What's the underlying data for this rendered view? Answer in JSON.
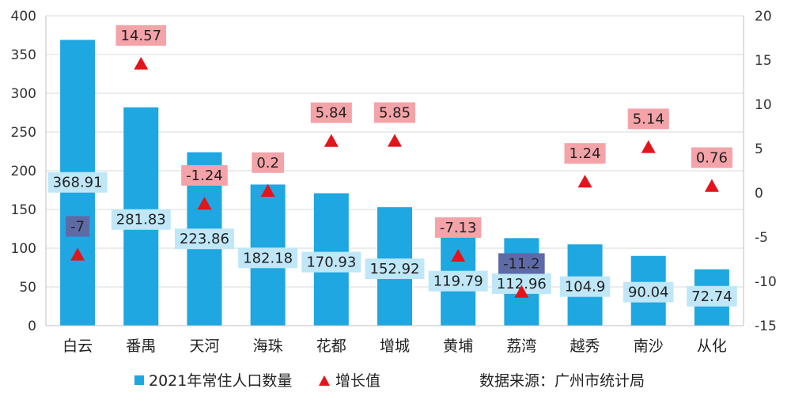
{
  "chart_data": {
    "type": "bar",
    "categories": [
      "白云",
      "番禺",
      "天河",
      "海珠",
      "花都",
      "增城",
      "黄埔",
      "荔湾",
      "越秀",
      "南沙",
      "从化"
    ],
    "series": [
      {
        "name": "2021年常住人口数量",
        "type": "bar",
        "axis": "left",
        "color": "#1ea7e1",
        "values": [
          368.91,
          281.83,
          223.86,
          182.18,
          170.93,
          152.92,
          119.79,
          112.96,
          104.9,
          90.04,
          72.74
        ],
        "labels": [
          "368.91",
          "281.83",
          "223.86",
          "182.18",
          "170.93",
          "152.92",
          "119.79",
          "112.96",
          "104.9",
          "90.04",
          "72.74"
        ]
      },
      {
        "name": "增长值",
        "type": "scatter",
        "marker": "triangle",
        "axis": "right",
        "color": "#e3141c",
        "values": [
          -7,
          14.57,
          -1.24,
          0.2,
          5.84,
          5.85,
          -7.13,
          -11.2,
          1.24,
          5.14,
          0.76
        ],
        "labels": [
          "-7",
          "14.57",
          "-1.24",
          "0.2",
          "5.84",
          "5.85",
          "-7.13",
          "-11.2",
          "1.24",
          "5.14",
          "0.76"
        ]
      }
    ],
    "y_left": {
      "min": 0,
      "max": 400,
      "step": 50,
      "ticks": [
        "0",
        "50",
        "100",
        "150",
        "200",
        "250",
        "300",
        "350",
        "400"
      ]
    },
    "y_right": {
      "min": -15,
      "max": 20,
      "step": 5,
      "ticks": [
        "-15",
        "-10",
        "-5",
        "0",
        "5",
        "10",
        "15",
        "20"
      ]
    },
    "grid": true,
    "legend_position": "bottom",
    "source_note": "数据来源：广州市统计局",
    "colors": {
      "bar": "#1ea7e1",
      "bar_label_bg": "#bfe7f8",
      "marker": "#e3141c",
      "marker_label_bg": "#f4a3a8",
      "marker_label_bg_dark": "#5d6aa6",
      "grid": "#d9d9d9"
    }
  }
}
